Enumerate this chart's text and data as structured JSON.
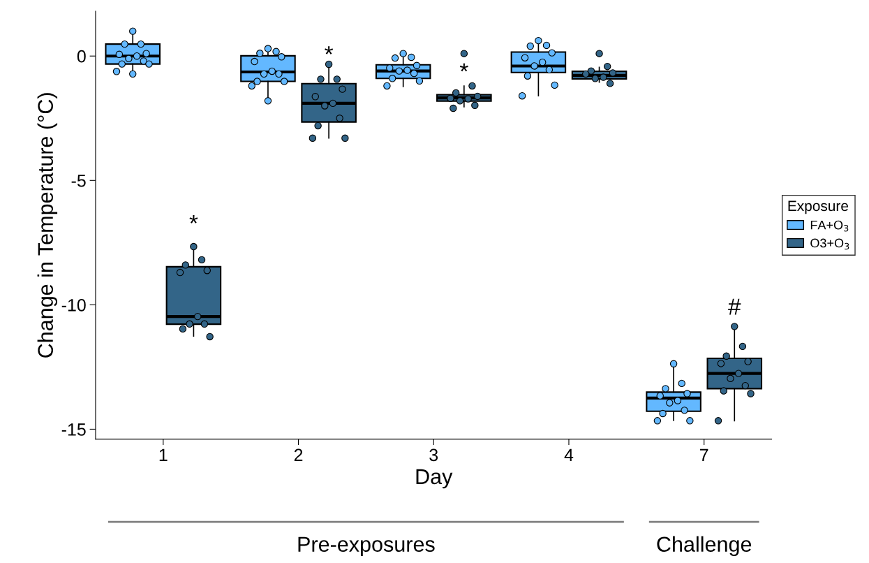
{
  "chart_data": {
    "type": "box",
    "xlabel": "Day",
    "ylabel": "Change in Temperature (°C)",
    "legend_title": "Exposure",
    "legend": "right",
    "grid": false,
    "categories": [
      "1",
      "2",
      "3",
      "4",
      "7"
    ],
    "ylim": [
      -15.4,
      1.8
    ],
    "yticks": [
      0,
      -5,
      -10,
      -15
    ],
    "series": [
      {
        "name": "FA+O$_{3}$",
        "color": "#63b8ff",
        "boxes": [
          {
            "low": -0.7,
            "q1": -0.32,
            "median": 0.0,
            "q3": 0.48,
            "high": 1.0
          },
          {
            "low": -1.8,
            "q1": -1.02,
            "median": -0.64,
            "q3": 0.01,
            "high": 0.25
          },
          {
            "low": -1.23,
            "q1": -0.9,
            "median": -0.6,
            "q3": -0.35,
            "high": 0.08
          },
          {
            "low": -1.6,
            "q1": -0.66,
            "median": -0.4,
            "q3": 0.16,
            "high": 0.62
          },
          {
            "low": -14.65,
            "q1": -14.28,
            "median": -13.75,
            "q3": -13.51,
            "high": -12.37
          }
        ]
      },
      {
        "name": "O3+O$_{3}$",
        "color": "#336588",
        "boxes": [
          {
            "low": -11.26,
            "q1": -10.78,
            "median": -10.47,
            "q3": -8.47,
            "high": -7.68
          },
          {
            "low": -3.3,
            "q1": -2.65,
            "median": -1.9,
            "q3": -1.11,
            "high": -0.33
          },
          {
            "low": -2.04,
            "q1": -1.81,
            "median": -1.68,
            "q3": -1.55,
            "high": -1.2
          },
          {
            "low": -1.05,
            "q1": -0.92,
            "median": -0.78,
            "q3": -0.61,
            "high": -0.45
          },
          {
            "low": -14.66,
            "q1": -13.37,
            "median": -12.76,
            "q3": -12.15,
            "high": -10.88
          }
        ]
      },
      {
        "type": "scatter",
        "color": "#63b8ff",
        "x": [
          "1",
          "1",
          "1",
          "1",
          "1",
          "1",
          "1",
          "1",
          "1",
          "1",
          "1",
          "1",
          "2",
          "2",
          "2",
          "2",
          "2",
          "2",
          "2",
          "2",
          "2",
          "2",
          "2",
          "2",
          "3",
          "3",
          "3",
          "3",
          "3",
          "3",
          "3",
          "3",
          "3",
          "3",
          "3",
          "4",
          "4",
          "4",
          "4",
          "4",
          "4",
          "4",
          "4",
          "4",
          "4",
          "4",
          "7",
          "7",
          "7",
          "7",
          "7",
          "7",
          "7",
          "7",
          "7",
          "7",
          "7"
        ],
        "values": [
          1.0,
          0.48,
          0.48,
          0.1,
          0.07,
          0.0,
          -0.1,
          -0.2,
          -0.32,
          -0.32,
          -0.62,
          -0.72,
          0.3,
          0.18,
          0.11,
          -0.03,
          -0.22,
          -0.61,
          -0.72,
          -0.72,
          -1.02,
          -1.02,
          -1.2,
          -1.8,
          0.1,
          -0.05,
          -0.08,
          -0.38,
          -0.48,
          -0.57,
          -0.6,
          -0.7,
          -0.9,
          -1.0,
          -1.2,
          0.62,
          0.43,
          0.4,
          0.13,
          -0.07,
          -0.25,
          -0.4,
          -0.55,
          -0.8,
          -1.17,
          -1.6,
          -12.37,
          -13.16,
          -13.37,
          -13.57,
          -13.66,
          -13.85,
          -13.94,
          -14.24,
          -14.37,
          -14.66,
          -14.66
        ]
      },
      {
        "type": "scatter",
        "color": "#336588",
        "x": [
          "1",
          "1",
          "1",
          "1",
          "1",
          "1",
          "1",
          "1",
          "1",
          "1",
          "2",
          "2",
          "2",
          "2",
          "2",
          "2",
          "2",
          "2",
          "2",
          "2",
          "2",
          "3",
          "3",
          "3",
          "3",
          "3",
          "3",
          "3",
          "3",
          "3",
          "4",
          "4",
          "4",
          "4",
          "4",
          "4",
          "4",
          "4",
          "7",
          "7",
          "7",
          "7",
          "7",
          "7",
          "7",
          "7",
          "7",
          "7",
          "7"
        ],
        "values": [
          -7.66,
          -8.19,
          -8.4,
          -8.62,
          -8.7,
          -10.47,
          -10.77,
          -10.77,
          -10.97,
          -11.28,
          -0.33,
          -0.93,
          -0.93,
          -1.33,
          -1.63,
          -1.9,
          -2.0,
          -2.5,
          -2.8,
          -3.3,
          -3.3,
          0.1,
          -1.2,
          -1.48,
          -1.62,
          -1.7,
          -1.72,
          -1.8,
          -1.98,
          -2.1,
          0.1,
          -0.42,
          -0.6,
          -0.68,
          -0.72,
          -0.85,
          -0.9,
          -1.1,
          -10.87,
          -11.67,
          -12.06,
          -12.28,
          -12.36,
          -12.76,
          -12.96,
          -13.25,
          -13.46,
          -13.57,
          -14.66
        ]
      }
    ],
    "annotations": [
      "*",
      "*",
      "*",
      "#",
      "Pre-exposures",
      "Challenge"
    ]
  }
}
